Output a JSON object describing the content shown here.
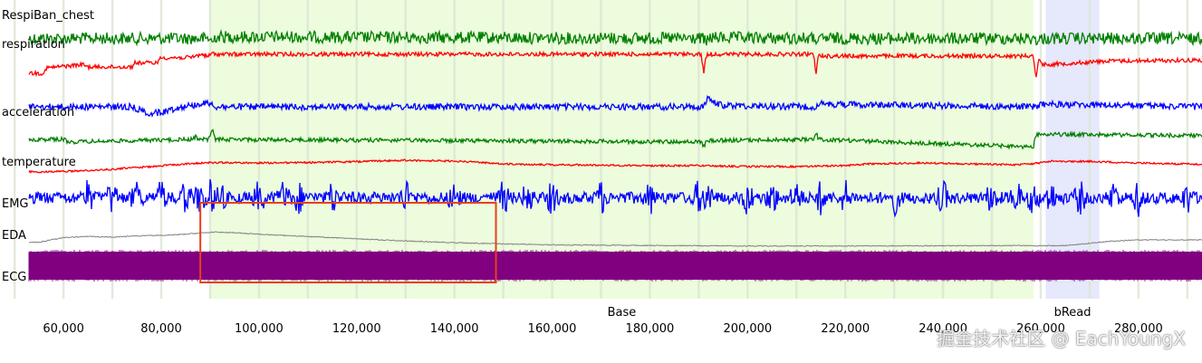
{
  "chart_data": {
    "type": "line",
    "title": "RespiBan_chest",
    "xlim": [
      47000,
      293000
    ],
    "xticks": [
      60000,
      80000,
      100000,
      120000,
      140000,
      160000,
      180000,
      200000,
      220000,
      240000,
      260000,
      280000
    ],
    "xtick_labels": [
      "60,000",
      "80,000",
      "100,000",
      "120,000",
      "140,000",
      "160,000",
      "180,000",
      "200,000",
      "220,000",
      "240,000",
      "260,000",
      "280,000"
    ],
    "grid": "vertical",
    "regions": [
      {
        "label": "Base",
        "start": 90000,
        "end": 258500,
        "color": "#ecfcdc"
      },
      {
        "label": "bRead",
        "start": 261000,
        "end": 272000,
        "color": "#e6e8fb"
      }
    ],
    "channel_labels": [
      "respiration",
      "acceleration",
      "temperature",
      "EMG",
      "EDA",
      "ECG"
    ],
    "series": [
      {
        "label": "respiration",
        "color": "#008000",
        "baseline": 0.5,
        "x": [
          47000,
          90000,
          90500,
          91000,
          191000,
          191500,
          192000,
          214000,
          214500,
          215000,
          259000,
          259500,
          260000,
          293000
        ],
        "y": [
          0.5,
          0.5,
          0.8,
          0.4,
          0.5,
          0.85,
          0.45,
          0.5,
          0.8,
          0.5,
          0.5,
          0.75,
          0.5,
          0.5
        ]
      },
      {
        "label": "",
        "color": "#ff0000",
        "baseline": 0.6,
        "x": [
          47000,
          56000,
          56500,
          60000,
          64000,
          65000,
          74000,
          74500,
          79000,
          80000,
          86000,
          87000,
          88500,
          89500,
          90500,
          91000,
          190500,
          191000,
          191500,
          192000,
          213500,
          214000,
          214500,
          258500,
          259000,
          259500,
          260500,
          261000,
          270000,
          273000,
          293000
        ],
        "y": [
          0.6,
          0.6,
          0.45,
          0.4,
          0.35,
          0.42,
          0.42,
          0.3,
          0.3,
          0.15,
          0.15,
          0.1,
          0.05,
          0.12,
          0.02,
          0.05,
          0.05,
          0.6,
          0.1,
          0.05,
          0.05,
          0.6,
          0.1,
          0.1,
          0.8,
          0.2,
          0.35,
          0.35,
          0.28,
          0.25,
          0.22
        ]
      },
      {
        "label": "acceleration",
        "color": "#0000ff",
        "baseline": 0.5,
        "x": [
          47000,
          74000,
          76000,
          78000,
          80000,
          82000,
          84000,
          86000,
          88000,
          90000,
          91000,
          191000,
          192000,
          193000,
          195000,
          214000,
          215000,
          259000,
          260000,
          293000
        ],
        "y": [
          0.5,
          0.5,
          0.65,
          0.75,
          0.7,
          0.6,
          0.5,
          0.45,
          0.4,
          0.35,
          0.5,
          0.5,
          0.15,
          0.35,
          0.45,
          0.5,
          0.4,
          0.5,
          0.4,
          0.5
        ]
      },
      {
        "label": "",
        "color": "#008000",
        "baseline": 0.5,
        "x": [
          47000,
          60000,
          61000,
          86000,
          87000,
          88000,
          89500,
          90500,
          91000,
          190500,
          191000,
          191500,
          192000,
          213500,
          214000,
          214500,
          258500,
          259000,
          259500,
          260500,
          293000
        ],
        "y": [
          0.5,
          0.5,
          0.6,
          0.5,
          0.4,
          0.5,
          0.5,
          0.15,
          0.5,
          0.6,
          0.8,
          0.6,
          0.55,
          0.5,
          0.2,
          0.5,
          0.8,
          0.3,
          0.3,
          0.3,
          0.35
        ]
      },
      {
        "label": "temperature",
        "color": "#ff0000",
        "baseline": 0.5,
        "x": [
          47000,
          55000,
          62000,
          70000,
          78000,
          85000,
          90000,
          100000,
          110000,
          120000,
          130000,
          140000,
          150000,
          160000,
          170000,
          180000,
          190000,
          200000,
          210000,
          220000,
          225000,
          235000,
          245000,
          255000,
          258500,
          262000,
          270000,
          280000,
          293000
        ],
        "y": [
          0.85,
          0.9,
          0.85,
          0.75,
          0.6,
          0.45,
          0.38,
          0.4,
          0.38,
          0.33,
          0.25,
          0.3,
          0.45,
          0.5,
          0.52,
          0.55,
          0.55,
          0.6,
          0.6,
          0.55,
          0.45,
          0.4,
          0.45,
          0.5,
          0.45,
          0.3,
          0.32,
          0.4,
          0.48
        ]
      },
      {
        "label": "EMG",
        "color": "#0000ff",
        "baseline": 0.5,
        "x": [
          47000,
          293000
        ],
        "y": [
          0.5,
          0.5
        ]
      },
      {
        "label": "EDA",
        "color": "#808080",
        "baseline": 0.5,
        "x": [
          47000,
          55000,
          60000,
          65000,
          70000,
          75000,
          80000,
          85000,
          88000,
          91000,
          95000,
          100000,
          110000,
          120000,
          130000,
          140000,
          150000,
          160000,
          180000,
          200000,
          220000,
          240000,
          255000,
          258500,
          265000,
          270000,
          275000,
          280000,
          293000
        ],
        "y": [
          0.75,
          0.7,
          0.5,
          0.45,
          0.48,
          0.42,
          0.4,
          0.35,
          0.3,
          0.25,
          0.28,
          0.35,
          0.45,
          0.55,
          0.65,
          0.72,
          0.78,
          0.82,
          0.85,
          0.87,
          0.87,
          0.86,
          0.85,
          0.86,
          0.85,
          0.75,
          0.65,
          0.6,
          0.6
        ]
      },
      {
        "label": "ECG",
        "color": "#800080",
        "baseline": 0.5,
        "x": [
          47000,
          293000
        ],
        "y": [
          0.5,
          0.5
        ]
      }
    ],
    "annotation_box": {
      "x_start": 88000,
      "x_end": 148500,
      "channels": [
        "EDA",
        "ECG"
      ],
      "color": "#e8401c"
    }
  },
  "watermark": "掘金技术社区 @ EachYoungX",
  "colors": {
    "base_region": "#ecfcdc",
    "bread_region": "#e6e8fb",
    "grid": "#dde6d4",
    "highlight_box": "#e8401c"
  }
}
